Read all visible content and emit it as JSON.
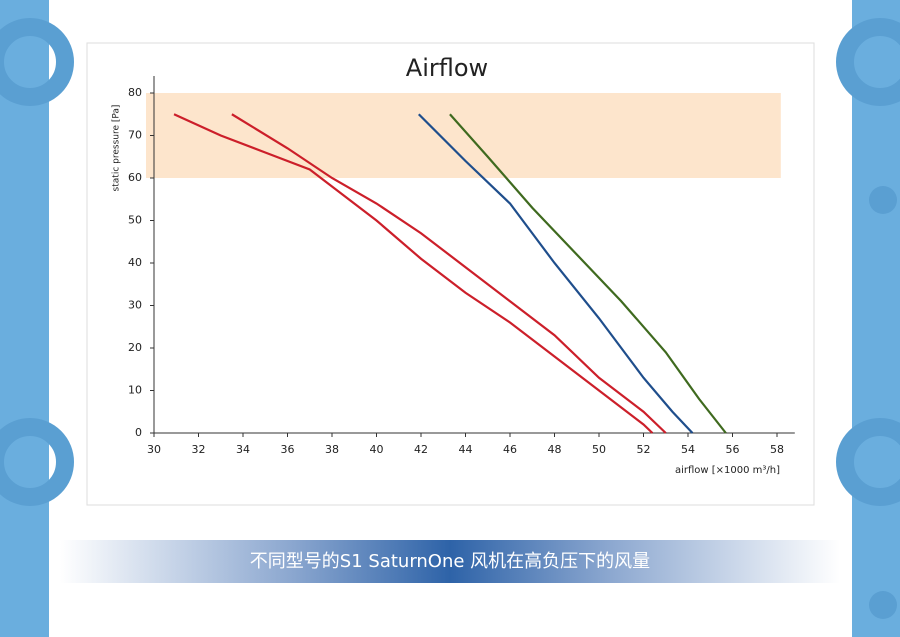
{
  "chart_data": {
    "type": "line",
    "title": "Airflow",
    "x_label": "airflow [×1000 m³/h]",
    "y_label": "static pressure [Pa]",
    "xlim": [
      30,
      58.8
    ],
    "xticks": [
      30,
      32,
      34,
      36,
      38,
      40,
      42,
      44,
      46,
      48,
      50,
      52,
      54,
      56,
      58
    ],
    "ylim": [
      0,
      84
    ],
    "yticks": [
      0,
      10,
      20,
      30,
      40,
      50,
      60,
      70,
      80
    ],
    "band": [
      60,
      80
    ],
    "band_color": "#fde5cc",
    "series": [
      {
        "color": "#cc1f2a",
        "x": [
          30.9,
          33,
          35,
          37,
          38,
          40,
          42,
          44,
          46,
          48,
          50,
          52,
          52.4
        ],
        "values": [
          75,
          70,
          66,
          62,
          58,
          50,
          41,
          33,
          26,
          18,
          10,
          2,
          0
        ]
      },
      {
        "color": "#cc1f2a",
        "x": [
          33.5,
          36,
          38,
          40,
          42,
          44,
          46,
          48,
          50,
          52,
          53
        ],
        "values": [
          75,
          67,
          60,
          54,
          47,
          39,
          31,
          23,
          13,
          5,
          0
        ]
      },
      {
        "color": "#1f4e8c",
        "x": [
          41.9,
          44,
          46,
          47,
          48,
          50,
          52,
          53.3,
          54.2
        ],
        "values": [
          75,
          64,
          54,
          47,
          40,
          27,
          13,
          5,
          0
        ]
      },
      {
        "color": "#3f6a1f",
        "x": [
          43.3,
          45,
          47,
          49,
          51,
          53,
          54.5,
          55.7
        ],
        "values": [
          75,
          65,
          53,
          42,
          31,
          19,
          8,
          0
        ]
      }
    ]
  },
  "caption": "不同型号的S1 SaturnOne 风机在高负压下的风量"
}
